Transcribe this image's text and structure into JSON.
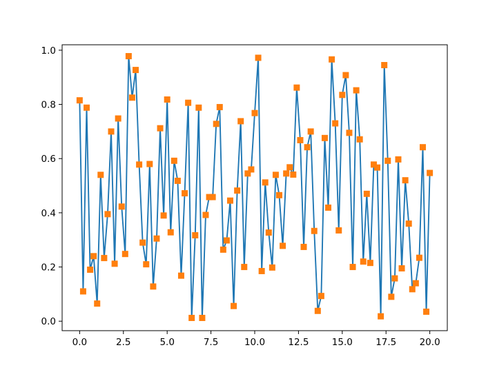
{
  "chart_data": {
    "type": "line",
    "title": "",
    "xlabel": "",
    "ylabel": "",
    "xlim": [
      -1.0,
      21.0
    ],
    "ylim": [
      -0.035,
      1.02
    ],
    "grid": false,
    "legend": "none",
    "x_ticks": [
      0.0,
      2.5,
      5.0,
      7.5,
      10.0,
      12.5,
      15.0,
      17.5,
      20.0
    ],
    "x_tick_labels": [
      "0.0",
      "2.5",
      "5.0",
      "7.5",
      "10.0",
      "12.5",
      "15.0",
      "17.5",
      "20.0"
    ],
    "y_ticks": [
      0.0,
      0.2,
      0.4,
      0.6,
      0.8,
      1.0
    ],
    "y_tick_labels": [
      "0.0",
      "0.2",
      "0.4",
      "0.6",
      "0.8",
      "1.0"
    ],
    "line_color": "#1f77b4",
    "marker_color": "#ff7f0e",
    "marker": "square",
    "series": [
      {
        "x": [
          0.0,
          0.2,
          0.4,
          0.6,
          0.8,
          1.0,
          1.2,
          1.4,
          1.6,
          1.8,
          2.0,
          2.2,
          2.4,
          2.6,
          2.8,
          3.0,
          3.2,
          3.4,
          3.6,
          3.8,
          4.0,
          4.2,
          4.4,
          4.6,
          4.8,
          5.0,
          5.2,
          5.4,
          5.6,
          5.8,
          6.0,
          6.2,
          6.4,
          6.6,
          6.8,
          7.0,
          7.2,
          7.4,
          7.6,
          7.8,
          8.0,
          8.2,
          8.4,
          8.6,
          8.8,
          9.0,
          9.2,
          9.4,
          9.6,
          9.8,
          10.0,
          10.2,
          10.4,
          10.6,
          10.8,
          11.0,
          11.2,
          11.4,
          11.6,
          11.8,
          12.0,
          12.2,
          12.4,
          12.6,
          12.8,
          13.0,
          13.2,
          13.4,
          13.6,
          13.8,
          14.0,
          14.2,
          14.4,
          14.6,
          14.8,
          15.0,
          15.2,
          15.4,
          15.6,
          15.8,
          16.0,
          16.2,
          16.4,
          16.6,
          16.8,
          17.0,
          17.2,
          17.4,
          17.6,
          17.8,
          18.0,
          18.2,
          18.4,
          18.6,
          18.8,
          19.0,
          19.2,
          19.4,
          19.6,
          19.8,
          20.0
        ],
        "y": [
          0.815,
          0.11,
          0.788,
          0.19,
          0.24,
          0.065,
          0.54,
          0.233,
          0.395,
          0.7,
          0.212,
          0.748,
          0.423,
          0.248,
          0.978,
          0.825,
          0.927,
          0.578,
          0.29,
          0.21,
          0.58,
          0.128,
          0.305,
          0.712,
          0.39,
          0.818,
          0.328,
          0.592,
          0.518,
          0.168,
          0.472,
          0.806,
          0.012,
          0.317,
          0.788,
          0.012,
          0.392,
          0.458,
          0.458,
          0.728,
          0.79,
          0.264,
          0.298,
          0.445,
          0.056,
          0.482,
          0.738,
          0.2,
          0.545,
          0.56,
          0.768,
          0.972,
          0.185,
          0.512,
          0.327,
          0.198,
          0.54,
          0.465,
          0.278,
          0.545,
          0.568,
          0.541,
          0.862,
          0.668,
          0.274,
          0.642,
          0.7,
          0.333,
          0.038,
          0.093,
          0.676,
          0.419,
          0.966,
          0.73,
          0.335,
          0.835,
          0.908,
          0.695,
          0.2,
          0.852,
          0.671,
          0.22,
          0.47,
          0.215,
          0.578,
          0.567,
          0.018,
          0.945,
          0.592,
          0.09,
          0.158,
          0.597,
          0.195,
          0.52,
          0.36,
          0.118,
          0.14,
          0.234,
          0.642,
          0.035,
          0.547
        ]
      }
    ]
  }
}
